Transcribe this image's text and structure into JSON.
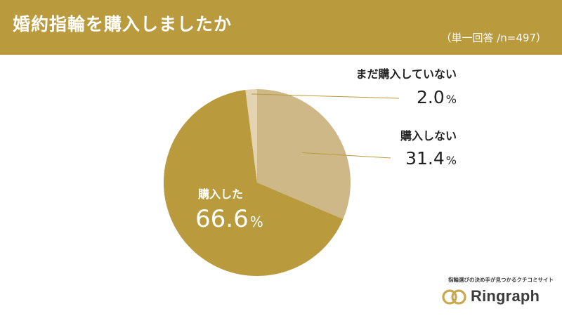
{
  "header": {
    "title": "婚約指輪を購入しましたか",
    "subtitle": "（単一回答 /n=497）"
  },
  "chart_data": {
    "type": "pie",
    "slices": [
      {
        "label": "購入しない",
        "value": 31.4,
        "display": "31.4",
        "color": "#cfb887"
      },
      {
        "label": "購入した",
        "value": 66.6,
        "display": "66.6",
        "color": "#b99a3c"
      },
      {
        "label": "まだ購入していない",
        "value": 2.0,
        "display": "2.0",
        "color": "#e4d3b1"
      }
    ],
    "unit": "%",
    "start_angle_deg": 0,
    "direction": "clockwise"
  },
  "colors": {
    "header_bg": "#b99a3c",
    "leader_line": "#b99a3c",
    "label_text": "#222222",
    "inner_label_text": "#ffffff"
  },
  "logo": {
    "tagline": "指輪選びの決め手が見つかるクチコミサイト",
    "name": "Ringraph",
    "icon": "double-ring-icon"
  }
}
